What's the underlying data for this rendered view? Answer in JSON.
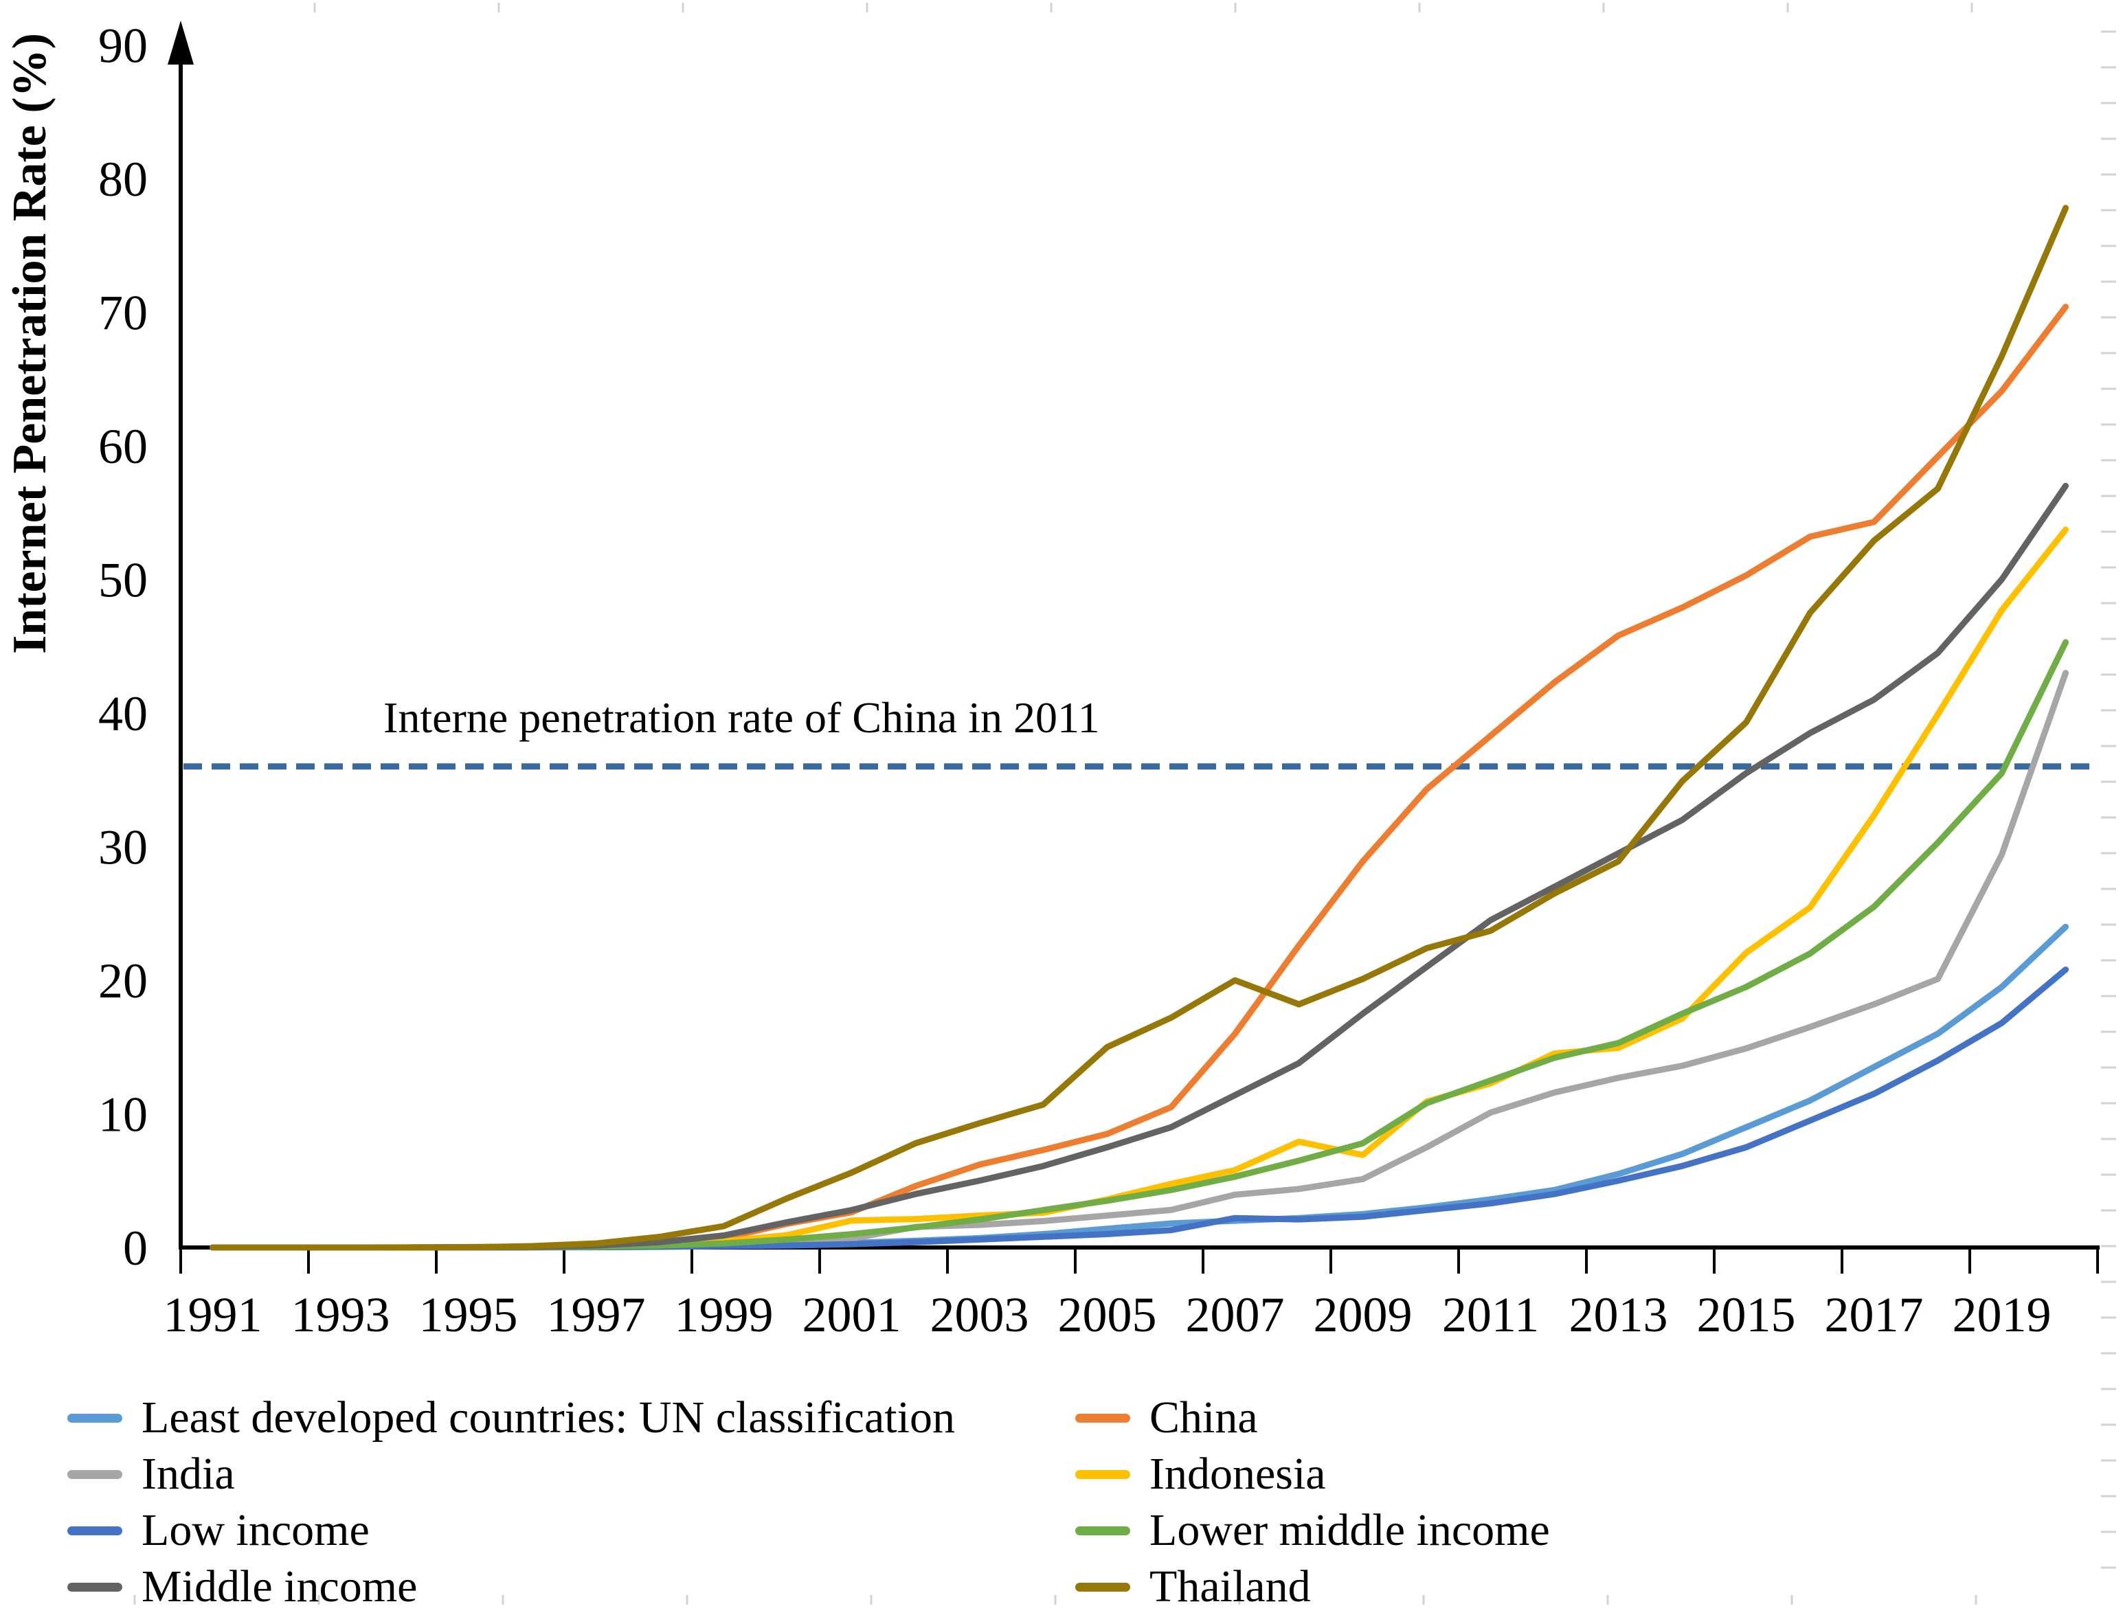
{
  "figure": {
    "background_color": "#ffffff",
    "text_color": "#000000",
    "axis_color": "#000000",
    "minor_tick_color": "#d2d2d2"
  },
  "chart_data": {
    "type": "line",
    "title": "",
    "xlabel": "",
    "ylabel": "Internet Penetration Rate (%)",
    "ylim": [
      0,
      90
    ],
    "y_ticks": [
      0,
      10,
      20,
      30,
      40,
      50,
      60,
      70,
      80,
      90
    ],
    "x": [
      1991,
      1992,
      1993,
      1994,
      1995,
      1996,
      1997,
      1998,
      1999,
      2000,
      2001,
      2002,
      2003,
      2004,
      2005,
      2006,
      2007,
      2008,
      2009,
      2010,
      2011,
      2012,
      2013,
      2014,
      2015,
      2016,
      2017,
      2018,
      2019,
      2020
    ],
    "x_tick_labels": [
      "1991",
      "1993",
      "1995",
      "1997",
      "1999",
      "2001",
      "2003",
      "2005",
      "2007",
      "2009",
      "2011",
      "2013",
      "2015",
      "2017",
      "2019"
    ],
    "grid": false,
    "legend_position": "bottom",
    "annotation": {
      "text": "Interne penetration rate of China in 2011",
      "y_value": 36
    },
    "reference_line": {
      "value": 36,
      "style": "dashed",
      "color": "#38699C"
    },
    "series": [
      {
        "name": "Least developed countries: UN classification",
        "color": "#5B9BD5",
        "values": [
          0,
          0,
          0,
          0,
          0.01,
          0.02,
          0.03,
          0.06,
          0.12,
          0.2,
          0.35,
          0.5,
          0.7,
          1.0,
          1.4,
          1.8,
          2.0,
          2.2,
          2.5,
          3.0,
          3.6,
          4.3,
          5.5,
          7.0,
          9.0,
          11.0,
          13.5,
          16.0,
          19.5,
          24.0
        ]
      },
      {
        "name": "China",
        "color": "#ED7D31",
        "values": [
          0,
          0,
          0,
          0,
          0.01,
          0.01,
          0.03,
          0.17,
          0.71,
          1.78,
          2.64,
          4.6,
          6.2,
          7.3,
          8.5,
          10.5,
          16.0,
          22.6,
          28.9,
          34.3,
          38.3,
          42.3,
          45.8,
          47.9,
          50.3,
          53.2,
          54.3,
          59.2,
          64.1,
          70.4
        ]
      },
      {
        "name": "India",
        "color": "#A6A6A6",
        "values": [
          0,
          0,
          0,
          0,
          0.03,
          0.05,
          0.07,
          0.14,
          0.28,
          0.53,
          0.66,
          1.54,
          1.69,
          1.98,
          2.39,
          2.81,
          3.95,
          4.38,
          5.12,
          7.5,
          10.1,
          11.6,
          12.7,
          13.6,
          14.9,
          16.5,
          18.2,
          20.1,
          29.4,
          43.0
        ]
      },
      {
        "name": "Indonesia",
        "color": "#FFC000",
        "values": [
          0,
          0,
          0,
          0.01,
          0.03,
          0.06,
          0.13,
          0.25,
          0.45,
          0.93,
          2.02,
          2.13,
          2.39,
          2.6,
          3.6,
          4.76,
          5.79,
          7.92,
          6.92,
          10.92,
          12.28,
          14.52,
          14.94,
          17.14,
          22.06,
          25.45,
          32.34,
          39.9,
          47.69,
          53.73
        ]
      },
      {
        "name": "Low income",
        "color": "#4472C4",
        "values": [
          0,
          0,
          0,
          0,
          0,
          0.01,
          0.02,
          0.05,
          0.1,
          0.15,
          0.25,
          0.4,
          0.6,
          0.8,
          1.0,
          1.3,
          2.2,
          2.1,
          2.3,
          2.8,
          3.3,
          4.0,
          5.0,
          6.1,
          7.5,
          9.5,
          11.5,
          14.0,
          16.8,
          20.8
        ]
      },
      {
        "name": "Lower middle income",
        "color": "#70AD47",
        "values": [
          0,
          0,
          0,
          0,
          0.01,
          0.03,
          0.06,
          0.15,
          0.3,
          0.6,
          1.0,
          1.5,
          2.1,
          2.8,
          3.5,
          4.3,
          5.3,
          6.5,
          7.8,
          10.8,
          12.5,
          14.2,
          15.3,
          17.5,
          19.5,
          22.0,
          25.5,
          30.3,
          35.5,
          45.3
        ]
      },
      {
        "name": "Middle income",
        "color": "#636363",
        "values": [
          0,
          0,
          0,
          0,
          0.02,
          0.05,
          0.15,
          0.4,
          0.9,
          1.9,
          2.8,
          4.0,
          5.0,
          6.1,
          7.5,
          9.0,
          11.4,
          13.8,
          17.5,
          21.0,
          24.5,
          27.0,
          29.5,
          32.0,
          35.5,
          38.5,
          41.0,
          44.5,
          50.0,
          57.0
        ]
      },
      {
        "name": "Thailand",
        "color": "#967809",
        "values": [
          0,
          0,
          0,
          0,
          0.01,
          0.1,
          0.3,
          0.8,
          1.6,
          3.7,
          5.6,
          7.8,
          9.3,
          10.7,
          15.0,
          17.2,
          20.0,
          18.2,
          20.1,
          22.4,
          23.7,
          26.5,
          28.9,
          34.9,
          39.3,
          47.5,
          52.9,
          56.8,
          66.7,
          77.8
        ]
      }
    ]
  }
}
